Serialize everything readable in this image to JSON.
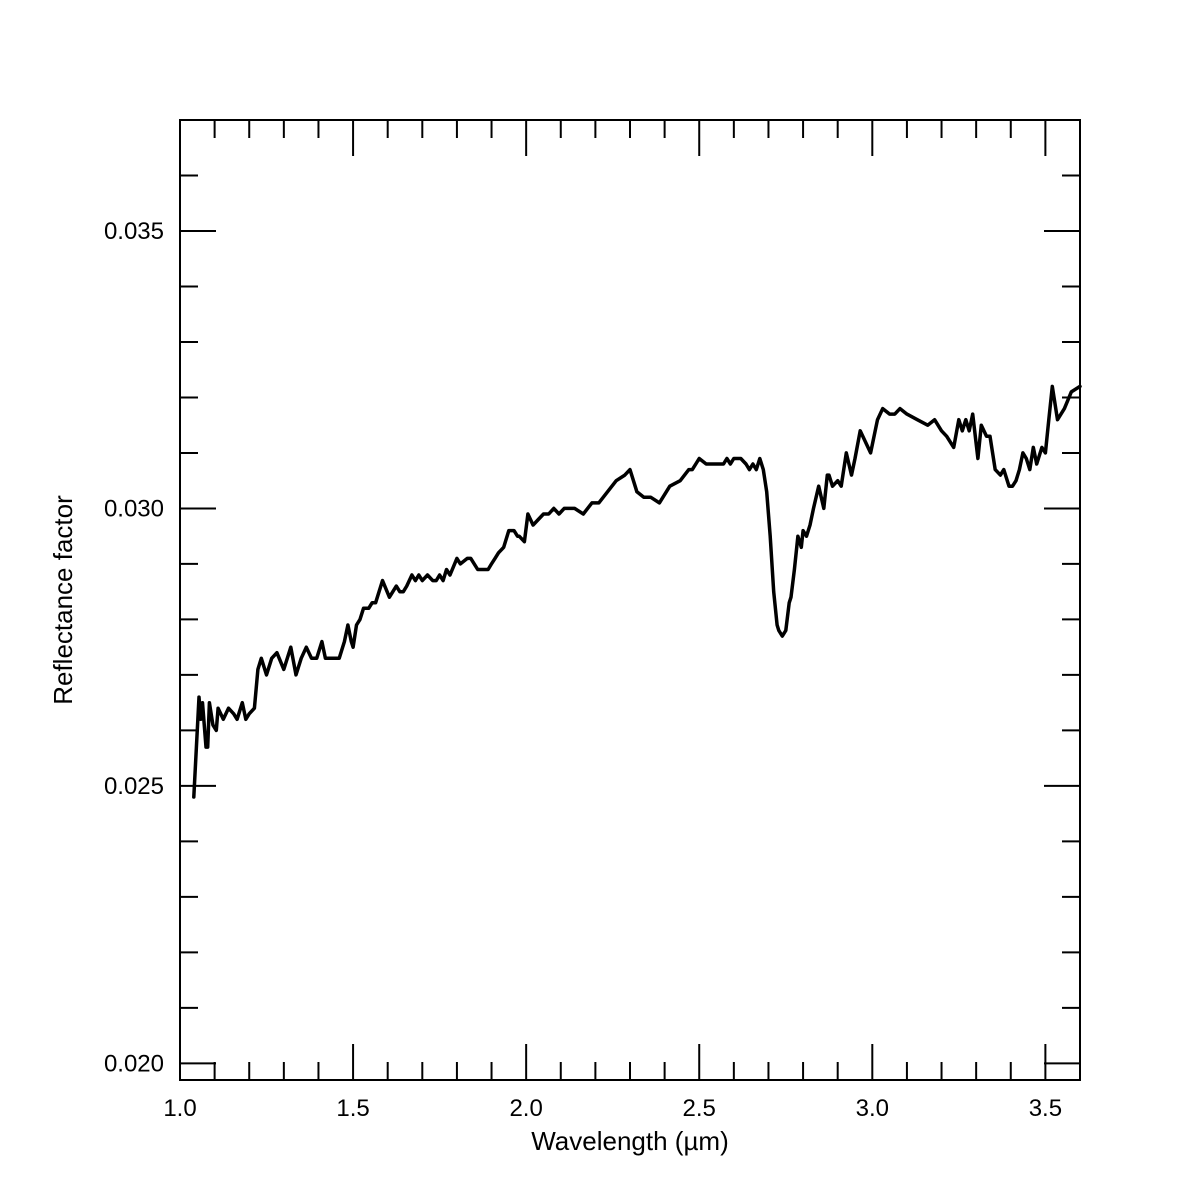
{
  "chart_data": {
    "type": "line",
    "title": "",
    "xlabel": "Wavelength (µm)",
    "ylabel": "Reflectance factor",
    "xlim": [
      1.0,
      3.6
    ],
    "ylim": [
      0.0197,
      0.037
    ],
    "x_ticks": [
      {
        "value": 1.0,
        "label": "1.0"
      },
      {
        "value": 1.5,
        "label": "1.5"
      },
      {
        "value": 2.0,
        "label": "2.0"
      },
      {
        "value": 2.5,
        "label": "2.5"
      },
      {
        "value": 3.0,
        "label": "3.0"
      },
      {
        "value": 3.5,
        "label": "3.5"
      }
    ],
    "x_minor_step": 0.1,
    "y_ticks": [
      {
        "value": 0.02,
        "label": "0.020"
      },
      {
        "value": 0.025,
        "label": "0.025"
      },
      {
        "value": 0.03,
        "label": "0.030"
      },
      {
        "value": 0.035,
        "label": "0.035"
      }
    ],
    "y_minor_step": 0.001,
    "grid": false,
    "line_color": "#000000",
    "series": [
      {
        "x": [
          1.04,
          1.055,
          1.06,
          1.065,
          1.075,
          1.08,
          1.085,
          1.095,
          1.105,
          1.11,
          1.125,
          1.14,
          1.155,
          1.165,
          1.18,
          1.19,
          1.2,
          1.215,
          1.225,
          1.235,
          1.25,
          1.265,
          1.28,
          1.3,
          1.32,
          1.335,
          1.35,
          1.365,
          1.38,
          1.395,
          1.41,
          1.42,
          1.44,
          1.46,
          1.475,
          1.485,
          1.495,
          1.5,
          1.51,
          1.52,
          1.53,
          1.545,
          1.555,
          1.565,
          1.585,
          1.605,
          1.625,
          1.635,
          1.645,
          1.655,
          1.67,
          1.68,
          1.69,
          1.7,
          1.715,
          1.73,
          1.74,
          1.75,
          1.76,
          1.77,
          1.78,
          1.8,
          1.81,
          1.83,
          1.84,
          1.86,
          1.88,
          1.89,
          1.9,
          1.91,
          1.92,
          1.935,
          1.95,
          1.965,
          1.975,
          1.98,
          1.995,
          2.005,
          2.02,
          2.035,
          2.05,
          2.065,
          2.08,
          2.095,
          2.11,
          2.125,
          2.14,
          2.165,
          2.19,
          2.21,
          2.235,
          2.26,
          2.285,
          2.3,
          2.32,
          2.34,
          2.36,
          2.385,
          2.415,
          2.445,
          2.47,
          2.48,
          2.49,
          2.5,
          2.52,
          2.545,
          2.57,
          2.58,
          2.59,
          2.6,
          2.62,
          2.635,
          2.645,
          2.655,
          2.665,
          2.675,
          2.685,
          2.695,
          2.705,
          2.715,
          2.725,
          2.73,
          2.74,
          2.75,
          2.76,
          2.765,
          2.775,
          2.785,
          2.795,
          2.8,
          2.81,
          2.82,
          2.83,
          2.845,
          2.86,
          2.87,
          2.875,
          2.885,
          2.9,
          2.91,
          2.925,
          2.94,
          2.95,
          2.965,
          2.995,
          3.015,
          3.03,
          3.05,
          3.065,
          3.08,
          3.1,
          3.13,
          3.16,
          3.18,
          3.2,
          3.215,
          3.235,
          3.25,
          3.26,
          3.27,
          3.28,
          3.29,
          3.305,
          3.315,
          3.33,
          3.34,
          3.355,
          3.37,
          3.38,
          3.395,
          3.405,
          3.415,
          3.425,
          3.435,
          3.445,
          3.455,
          3.465,
          3.475,
          3.49,
          3.5,
          3.51,
          3.52,
          3.535,
          3.555,
          3.575,
          3.6
        ],
        "y": [
          0.0248,
          0.0266,
          0.0262,
          0.0265,
          0.0257,
          0.0257,
          0.0265,
          0.0261,
          0.026,
          0.0264,
          0.0262,
          0.0264,
          0.0263,
          0.0262,
          0.0265,
          0.0262,
          0.0263,
          0.0264,
          0.0271,
          0.0273,
          0.027,
          0.0273,
          0.0274,
          0.0271,
          0.0275,
          0.027,
          0.0273,
          0.0275,
          0.0273,
          0.0273,
          0.0276,
          0.0273,
          0.0273,
          0.0273,
          0.0276,
          0.0279,
          0.0276,
          0.0275,
          0.0279,
          0.028,
          0.0282,
          0.0282,
          0.0283,
          0.0283,
          0.0287,
          0.0284,
          0.0286,
          0.0285,
          0.0285,
          0.0286,
          0.0288,
          0.0287,
          0.0288,
          0.0287,
          0.0288,
          0.0287,
          0.0287,
          0.0288,
          0.0287,
          0.0289,
          0.0288,
          0.0291,
          0.029,
          0.0291,
          0.0291,
          0.0289,
          0.0289,
          0.0289,
          0.029,
          0.0291,
          0.0292,
          0.0293,
          0.0296,
          0.0296,
          0.0295,
          0.0295,
          0.0294,
          0.0299,
          0.0297,
          0.0298,
          0.0299,
          0.0299,
          0.03,
          0.0299,
          0.03,
          0.03,
          0.03,
          0.0299,
          0.0301,
          0.0301,
          0.0303,
          0.0305,
          0.0306,
          0.0307,
          0.0303,
          0.0302,
          0.0302,
          0.0301,
          0.0304,
          0.0305,
          0.0307,
          0.0307,
          0.0308,
          0.0309,
          0.0308,
          0.0308,
          0.0308,
          0.0309,
          0.0308,
          0.0309,
          0.0309,
          0.0308,
          0.0307,
          0.0308,
          0.0307,
          0.0309,
          0.0307,
          0.0303,
          0.0295,
          0.0285,
          0.0279,
          0.0278,
          0.0277,
          0.0278,
          0.0283,
          0.0284,
          0.0289,
          0.0295,
          0.0293,
          0.0296,
          0.0295,
          0.0297,
          0.03,
          0.0304,
          0.03,
          0.0306,
          0.0306,
          0.0304,
          0.0305,
          0.0304,
          0.031,
          0.0306,
          0.0309,
          0.0314,
          0.031,
          0.0316,
          0.0318,
          0.0317,
          0.0317,
          0.0318,
          0.0317,
          0.0316,
          0.0315,
          0.0316,
          0.0314,
          0.0313,
          0.0311,
          0.0316,
          0.0314,
          0.0316,
          0.0314,
          0.0317,
          0.0309,
          0.0315,
          0.0313,
          0.0313,
          0.0307,
          0.0306,
          0.0307,
          0.0304,
          0.0304,
          0.0305,
          0.0307,
          0.031,
          0.0309,
          0.0307,
          0.0311,
          0.0308,
          0.0311,
          0.031,
          0.0316,
          0.0322,
          0.0316,
          0.0318,
          0.0321,
          0.0322
        ]
      }
    ]
  }
}
